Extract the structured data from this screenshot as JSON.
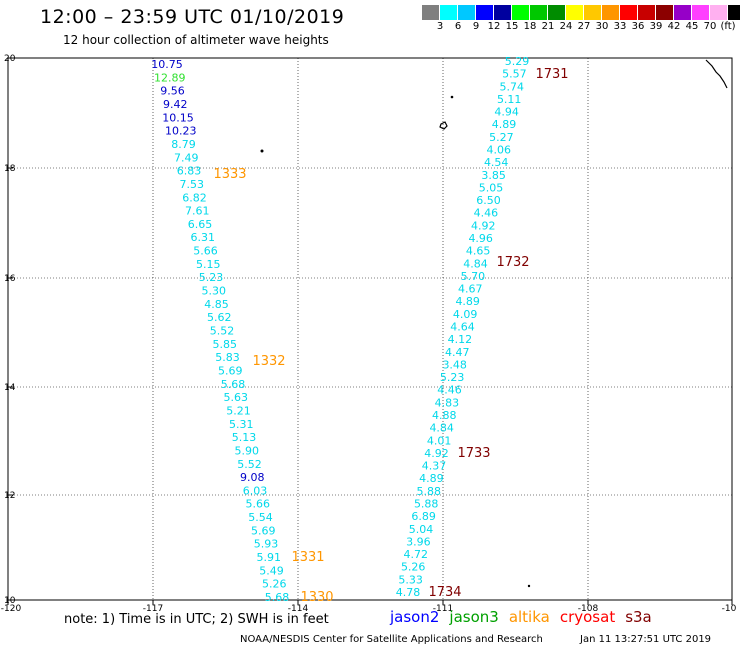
{
  "header": {
    "title": "12:00 – 23:59 UTC 01/10/2019",
    "subtitle": "12 hour collection of altimeter wave heights"
  },
  "legend": {
    "colors": [
      "#7f7f7f",
      "#00ffff",
      "#00c8ff",
      "#0000ff",
      "#00009f",
      "#00ff00",
      "#00c800",
      "#008c00",
      "#ffff00",
      "#ffc800",
      "#ff9600",
      "#ff0000",
      "#c80000",
      "#8c0000",
      "#9600c8",
      "#ff40ff",
      "#ffb0f0",
      "#000000"
    ],
    "labels": [
      "3",
      "6",
      "9",
      "12",
      "15",
      "18",
      "21",
      "24",
      "27",
      "30",
      "33",
      "36",
      "39",
      "42",
      "45",
      "70",
      "(ft)"
    ]
  },
  "axes": {
    "lon_labels": [
      "-120",
      "-117",
      "-114",
      "-111",
      "-108",
      "-10"
    ],
    "lat_labels": [
      "20",
      "18",
      "16",
      "14",
      "12",
      "10"
    ]
  },
  "colors": {
    "lt": "#00d8ea",
    "blue": "#0000c8",
    "green": "#30e030",
    "orange": "#ff9600",
    "dark": "#800000"
  },
  "tracks": {
    "west": [
      {
        "v": "10.75",
        "c": "blue"
      },
      {
        "v": "12.89",
        "c": "green"
      },
      {
        "v": "9.56",
        "c": "blue"
      },
      {
        "v": "9.42",
        "c": "blue"
      },
      {
        "v": "10.15",
        "c": "blue"
      },
      {
        "v": "10.23",
        "c": "blue"
      },
      {
        "v": "8.79",
        "c": "lt"
      },
      {
        "v": "7.49",
        "c": "lt"
      },
      {
        "v": "6.83",
        "c": "lt"
      },
      {
        "v": "7.53",
        "c": "lt"
      },
      {
        "v": "6.82",
        "c": "lt"
      },
      {
        "v": "7.61",
        "c": "lt"
      },
      {
        "v": "6.65",
        "c": "lt"
      },
      {
        "v": "6.31",
        "c": "lt"
      },
      {
        "v": "5.66",
        "c": "lt"
      },
      {
        "v": "5.15",
        "c": "lt"
      },
      {
        "v": "5.23",
        "c": "lt"
      },
      {
        "v": "5.30",
        "c": "lt"
      },
      {
        "v": "4.85",
        "c": "lt"
      },
      {
        "v": "5.62",
        "c": "lt"
      },
      {
        "v": "5.52",
        "c": "lt"
      },
      {
        "v": "5.85",
        "c": "lt"
      },
      {
        "v": "5.83",
        "c": "lt"
      },
      {
        "v": "5.69",
        "c": "lt"
      },
      {
        "v": "5.68",
        "c": "lt"
      },
      {
        "v": "5.63",
        "c": "lt"
      },
      {
        "v": "5.21",
        "c": "lt"
      },
      {
        "v": "5.31",
        "c": "lt"
      },
      {
        "v": "5.13",
        "c": "lt"
      },
      {
        "v": "5.90",
        "c": "lt"
      },
      {
        "v": "5.52",
        "c": "lt"
      },
      {
        "v": "9.08",
        "c": "blue"
      },
      {
        "v": "6.03",
        "c": "lt"
      },
      {
        "v": "5.66",
        "c": "lt"
      },
      {
        "v": "5.54",
        "c": "lt"
      },
      {
        "v": "5.69",
        "c": "lt"
      },
      {
        "v": "5.93",
        "c": "lt"
      },
      {
        "v": "5.91",
        "c": "lt"
      },
      {
        "v": "5.49",
        "c": "lt"
      },
      {
        "v": "5.26",
        "c": "lt"
      },
      {
        "v": "5.68",
        "c": "lt"
      }
    ],
    "east": [
      {
        "v": "5.29",
        "c": "lt"
      },
      {
        "v": "5.57",
        "c": "lt"
      },
      {
        "v": "5.74",
        "c": "lt"
      },
      {
        "v": "5.11",
        "c": "lt"
      },
      {
        "v": "4.94",
        "c": "lt"
      },
      {
        "v": "4.89",
        "c": "lt"
      },
      {
        "v": "5.27",
        "c": "lt"
      },
      {
        "v": "4.06",
        "c": "lt"
      },
      {
        "v": "4.54",
        "c": "lt"
      },
      {
        "v": "3.85",
        "c": "lt"
      },
      {
        "v": "5.05",
        "c": "lt"
      },
      {
        "v": "6.50",
        "c": "lt"
      },
      {
        "v": "4.46",
        "c": "lt"
      },
      {
        "v": "4.92",
        "c": "lt"
      },
      {
        "v": "4.96",
        "c": "lt"
      },
      {
        "v": "4.65",
        "c": "lt"
      },
      {
        "v": "4.84",
        "c": "lt"
      },
      {
        "v": "5.70",
        "c": "lt"
      },
      {
        "v": "4.67",
        "c": "lt"
      },
      {
        "v": "4.89",
        "c": "lt"
      },
      {
        "v": "4.09",
        "c": "lt"
      },
      {
        "v": "4.64",
        "c": "lt"
      },
      {
        "v": "4.12",
        "c": "lt"
      },
      {
        "v": "4.47",
        "c": "lt"
      },
      {
        "v": "3.48",
        "c": "lt"
      },
      {
        "v": "5.23",
        "c": "lt"
      },
      {
        "v": "4.46",
        "c": "lt"
      },
      {
        "v": "4.83",
        "c": "lt"
      },
      {
        "v": "4.88",
        "c": "lt"
      },
      {
        "v": "4.84",
        "c": "lt"
      },
      {
        "v": "4.01",
        "c": "lt"
      },
      {
        "v": "4.92",
        "c": "lt"
      },
      {
        "v": "4.37",
        "c": "lt"
      },
      {
        "v": "4.89",
        "c": "lt"
      },
      {
        "v": "5.88",
        "c": "lt"
      },
      {
        "v": "5.88",
        "c": "lt"
      },
      {
        "v": "6.89",
        "c": "lt"
      },
      {
        "v": "5.04",
        "c": "lt"
      },
      {
        "v": "3.96",
        "c": "lt"
      },
      {
        "v": "4.72",
        "c": "lt"
      },
      {
        "v": "5.26",
        "c": "lt"
      },
      {
        "v": "5.33",
        "c": "lt"
      },
      {
        "v": "4.78",
        "c": "lt"
      }
    ]
  },
  "times": [
    {
      "t": "1333",
      "c": "orange"
    },
    {
      "t": "1332",
      "c": "orange"
    },
    {
      "t": "1331",
      "c": "orange"
    },
    {
      "t": "1330",
      "c": "orange"
    },
    {
      "t": "1731",
      "c": "dark"
    },
    {
      "t": "1732",
      "c": "dark"
    },
    {
      "t": "1733",
      "c": "dark"
    },
    {
      "t": "1734",
      "c": "dark"
    }
  ],
  "footer": {
    "note": "note: 1) Time is in UTC; 2) SWH is in feet",
    "satellites": [
      {
        "name": "jason2",
        "color": "#0000ff"
      },
      {
        "name": "jason3",
        "color": "#00a000"
      },
      {
        "name": "altika",
        "color": "#ff9600"
      },
      {
        "name": "cryosat",
        "color": "#ff0000"
      },
      {
        "name": "s3a",
        "color": "#800000"
      }
    ],
    "credit": "NOAA/NESDIS Center for Satellite Applications and Research",
    "timestamp": "Jan 11 13:27:51 UTC 2019"
  }
}
